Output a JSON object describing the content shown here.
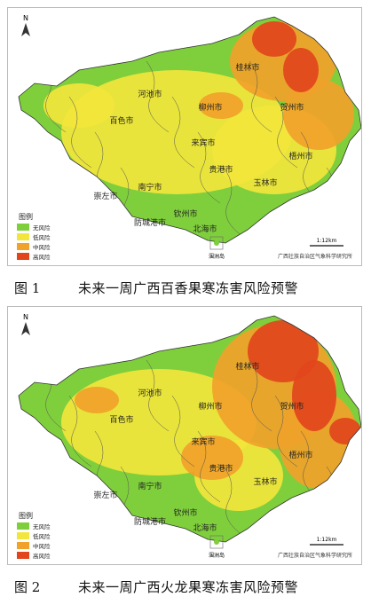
{
  "figures": [
    {
      "north": "N",
      "cities": [
        "百色市",
        "河池市",
        "柳州市",
        "桂林市",
        "贺州市",
        "梧州市",
        "来宾市",
        "贵港市",
        "南宁市",
        "崇左市",
        "钦州市",
        "防城港市",
        "北海市",
        "玉林市"
      ],
      "inset": "涠洲岛",
      "scale": "1:12km",
      "credit": "广西壮族自治区气象科学研究所",
      "legend": {
        "title": "图例",
        "items": [
          {
            "label": "无风险",
            "color": "#7fcf3c"
          },
          {
            "label": "低风险",
            "color": "#f2e63c"
          },
          {
            "label": "中风险",
            "color": "#f0a22a"
          },
          {
            "label": "高风险",
            "color": "#e2451c"
          }
        ]
      },
      "caption": {
        "label": "图 1",
        "text": "未来一周广西百香果寒冻害风险预警"
      }
    },
    {
      "north": "N",
      "cities": [
        "百色市",
        "河池市",
        "柳州市",
        "桂林市",
        "贺州市",
        "梧州市",
        "来宾市",
        "贵港市",
        "南宁市",
        "崇左市",
        "钦州市",
        "防城港市",
        "北海市",
        "玉林市"
      ],
      "inset": "涠洲岛",
      "scale": "1:12km",
      "credit": "广西壮族自治区气象科学研究所",
      "legend": {
        "title": "图例",
        "items": [
          {
            "label": "无风险",
            "color": "#7fcf3c"
          },
          {
            "label": "低风险",
            "color": "#f2e63c"
          },
          {
            "label": "中风险",
            "color": "#f0a22a"
          },
          {
            "label": "高风险",
            "color": "#e2451c"
          }
        ]
      },
      "caption": {
        "label": "图 2",
        "text": "未来一周广西火龙果寒冻害风险预警"
      }
    }
  ]
}
